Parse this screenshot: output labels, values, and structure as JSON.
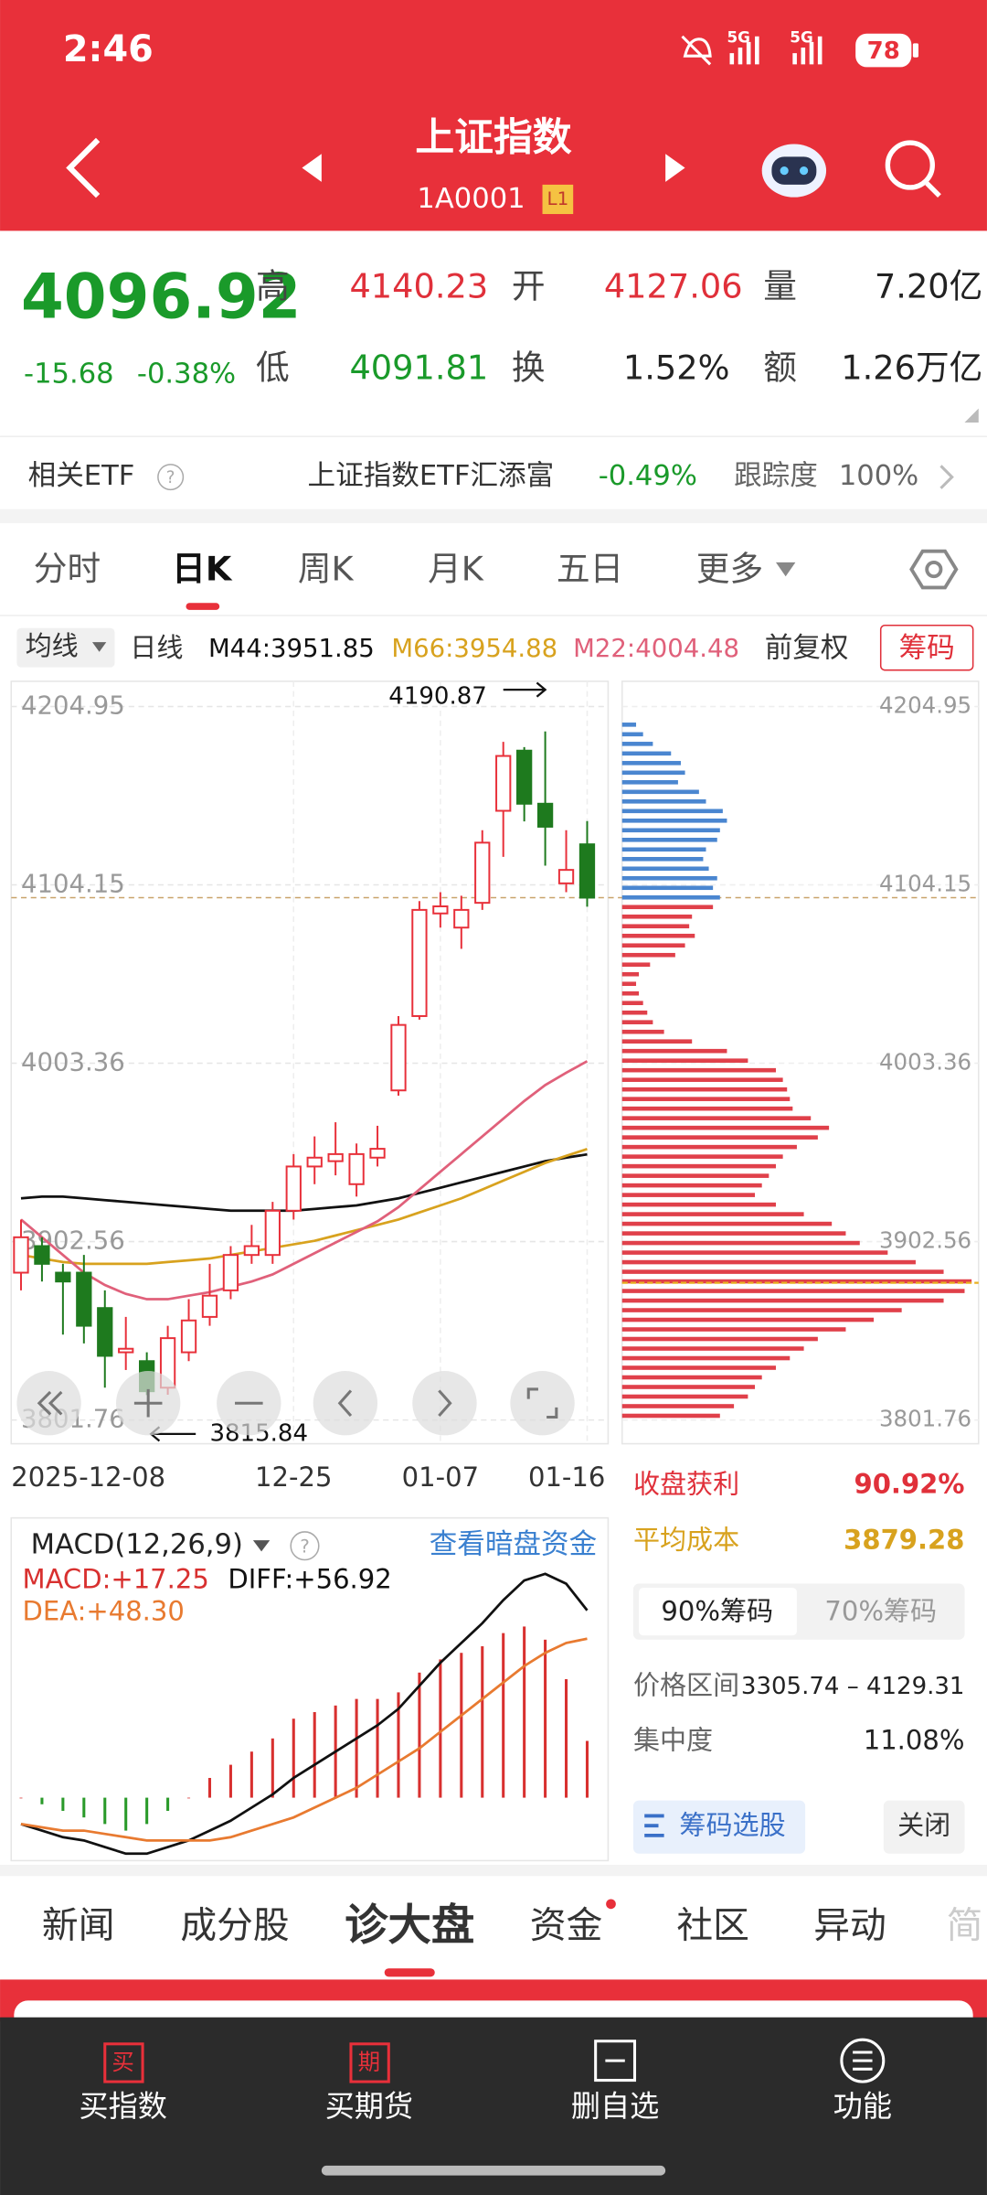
{
  "status_bar": {
    "time": "2:46",
    "network": [
      "5G",
      "5G"
    ],
    "battery": "78"
  },
  "header": {
    "title": "上证指数",
    "code": "1A0001",
    "badge": "L1"
  },
  "quote": {
    "price": 4096.92,
    "change": -15.68,
    "change_pct": "-0.38%",
    "high_label": "高",
    "high": 4140.23,
    "open_label": "开",
    "open": 4127.06,
    "volume_label": "量",
    "volume": "7.20亿",
    "low_label": "低",
    "low": 4091.81,
    "turnover_label": "换",
    "turnover": "1.52%",
    "amount_label": "额",
    "amount": "1.26万亿"
  },
  "etf": {
    "label": "相关ETF",
    "name": "上证指数ETF汇添富",
    "change": "-0.49%",
    "tracking_label": "跟踪度",
    "tracking": "100%"
  },
  "tabs": {
    "items": [
      "分时",
      "日K",
      "周K",
      "月K",
      "五日",
      "更多"
    ],
    "active": 1
  },
  "kline_bar": {
    "ma_button": "均线",
    "period": "日线",
    "adjust": "前复权",
    "chips_button": "筹码"
  },
  "kline": {
    "type": "candlestick",
    "up_color": "#e8303a",
    "down_color": "#1e7a1e",
    "ylim": [
      3801.76,
      4204.95
    ],
    "yticks": [
      4204.95,
      4104.15,
      4003.36,
      3902.56,
      3801.76
    ],
    "grid": true,
    "categories": [
      "2025-12-08",
      null,
      null,
      null,
      null,
      null,
      null,
      null,
      null,
      null,
      null,
      null,
      null,
      "12-25",
      null,
      null,
      null,
      null,
      null,
      null,
      "01-07",
      null,
      null,
      null,
      null,
      null,
      null,
      "01-16"
    ],
    "candles": [
      {
        "open": 3885,
        "high": 3915,
        "low": 3875,
        "close": 3905
      },
      {
        "open": 3900,
        "high": 3905,
        "low": 3880,
        "close": 3890
      },
      {
        "open": 3885,
        "high": 3890,
        "low": 3850,
        "close": 3880
      },
      {
        "open": 3885,
        "high": 3895,
        "low": 3845,
        "close": 3855
      },
      {
        "open": 3865,
        "high": 3875,
        "low": 3820,
        "close": 3838
      },
      {
        "open": 3840,
        "high": 3860,
        "low": 3830,
        "close": 3842
      },
      {
        "open": 3835,
        "high": 3840,
        "low": 3815.84,
        "close": 3818
      },
      {
        "open": 3820,
        "high": 3855,
        "low": 3816,
        "close": 3848
      },
      {
        "open": 3840,
        "high": 3870,
        "low": 3835,
        "close": 3858
      },
      {
        "open": 3860,
        "high": 3890,
        "low": 3855,
        "close": 3872
      },
      {
        "open": 3875,
        "high": 3900,
        "low": 3870,
        "close": 3895
      },
      {
        "open": 3895,
        "high": 3912,
        "low": 3890,
        "close": 3900
      },
      {
        "open": 3895,
        "high": 3925,
        "low": 3890,
        "close": 3920
      },
      {
        "open": 3920,
        "high": 3952,
        "low": 3915,
        "close": 3945
      },
      {
        "open": 3945,
        "high": 3962,
        "low": 3935,
        "close": 3950
      },
      {
        "open": 3948,
        "high": 3970,
        "low": 3940,
        "close": 3952
      },
      {
        "open": 3935,
        "high": 3958,
        "low": 3928,
        "close": 3952
      },
      {
        "open": 3950,
        "high": 3968,
        "low": 3945,
        "close": 3955
      },
      {
        "open": 3988,
        "high": 4030,
        "low": 3985,
        "close": 4025
      },
      {
        "open": 4030,
        "high": 4095,
        "low": 4028,
        "close": 4090
      },
      {
        "open": 4088,
        "high": 4100,
        "low": 4080,
        "close": 4092
      },
      {
        "open": 4080,
        "high": 4098,
        "low": 4068,
        "close": 4090
      },
      {
        "open": 4094,
        "high": 4135,
        "low": 4090,
        "close": 4128
      },
      {
        "open": 4146,
        "high": 4185,
        "low": 4120,
        "close": 4177
      },
      {
        "open": 4180,
        "high": 4182,
        "low": 4140,
        "close": 4150
      },
      {
        "open": 4150,
        "high": 4190.87,
        "low": 4115,
        "close": 4137
      },
      {
        "open": 4105,
        "high": 4135,
        "low": 4100,
        "close": 4112.6
      },
      {
        "open": 4127.06,
        "high": 4140.23,
        "low": 4091.81,
        "close": 4096.92
      }
    ],
    "series": [
      {
        "name": "M44:3951.85",
        "color": "#111111",
        "values": [
          3927,
          3928,
          3928,
          3927,
          3926,
          3925,
          3924,
          3923,
          3922,
          3921,
          3920,
          3920,
          3920,
          3920,
          3921,
          3922,
          3923,
          3925,
          3927,
          3930,
          3933,
          3936,
          3939,
          3942,
          3945,
          3948,
          3950,
          3951.85
        ]
      },
      {
        "name": "M66:3954.88",
        "color": "#d8a21e",
        "values": [
          3895,
          3893,
          3891,
          3890,
          3890,
          3890,
          3890,
          3891,
          3892,
          3893,
          3895,
          3897,
          3899,
          3901,
          3903,
          3906,
          3909,
          3912,
          3915,
          3919,
          3923,
          3927,
          3932,
          3937,
          3942,
          3947,
          3951,
          3954.88
        ]
      },
      {
        "name": "M22:4004.48",
        "color": "#e0607a",
        "values": [
          3915,
          3905,
          3895,
          3885,
          3878,
          3873,
          3870,
          3870,
          3872,
          3874,
          3877,
          3880,
          3884,
          3890,
          3896,
          3902,
          3908,
          3914,
          3922,
          3932,
          3942,
          3952,
          3962,
          3972,
          3982,
          3991,
          3998,
          4004.48
        ]
      }
    ]
  },
  "chips": {
    "up_color": "#4a86d0",
    "down_color": "#e0404a",
    "values": [
      10,
      15,
      22,
      35,
      42,
      45,
      40,
      55,
      60,
      72,
      75,
      70,
      68,
      60,
      58,
      62,
      68,
      65,
      70,
      65,
      50,
      48,
      52,
      45,
      38,
      20,
      12,
      10,
      12,
      15,
      18,
      22,
      30,
      50,
      75,
      90,
      110,
      115,
      118,
      120,
      122,
      135,
      148,
      140,
      125,
      115,
      110,
      105,
      100,
      95,
      110,
      130,
      150,
      160,
      170,
      190,
      210,
      230,
      250,
      245,
      230,
      200,
      180,
      160,
      140,
      130,
      120,
      110,
      100,
      95,
      90,
      80,
      70
    ],
    "profit_label": "收盘获利",
    "profit": "90.92%",
    "avg_cost_label": "平均成本",
    "avg_cost": 3879.28,
    "toggle": [
      "90%筹码",
      "70%筹码"
    ],
    "range_label": "价格区间",
    "range": "3305.74 – 4129.31",
    "concentration_label": "集中度",
    "concentration": "11.08%",
    "select_button": "筹码选股",
    "close_button": "关闭"
  },
  "macd": {
    "title": "MACD(12,26,9)",
    "link": "查看暗盘资金",
    "hist": {
      "name": "MACD:+17.25",
      "up_color": "#d8302f",
      "down_color": "#2a9a2a",
      "values": [
        0,
        -2,
        -4,
        -6,
        -8,
        -10,
        -8,
        -4,
        0,
        6,
        10,
        14,
        18,
        24,
        26,
        28,
        30,
        30,
        32,
        38,
        42,
        44,
        46,
        50,
        52,
        48,
        36,
        17.25
      ]
    },
    "series": [
      {
        "name": "DIFF:+56.92",
        "color": "#111111",
        "values": [
          -8,
          -10,
          -12,
          -13,
          -15,
          -17,
          -17,
          -15,
          -13,
          -10,
          -7,
          -3,
          1,
          6,
          10,
          14,
          18,
          22,
          27,
          34,
          41,
          47,
          53,
          60,
          66,
          68,
          65,
          56.92
        ]
      },
      {
        "name": "DEA:+48.30",
        "color": "#e87a30",
        "values": [
          -8,
          -9,
          -10,
          -10,
          -11,
          -12,
          -13,
          -13,
          -13,
          -13,
          -12,
          -10,
          -8,
          -6,
          -3,
          0,
          3,
          7,
          11,
          15,
          20,
          25,
          30,
          35,
          40,
          44,
          47,
          48.3
        ]
      }
    ]
  },
  "bottom_tabs": {
    "items": [
      "新闻",
      "成分股",
      "诊大盘",
      "资金",
      "社区",
      "异动",
      "简"
    ],
    "active": 2
  },
  "bottom_nav": {
    "items": [
      "买指数",
      "买期货",
      "删自选",
      "功能"
    ],
    "icons": [
      "买",
      "期"
    ]
  }
}
